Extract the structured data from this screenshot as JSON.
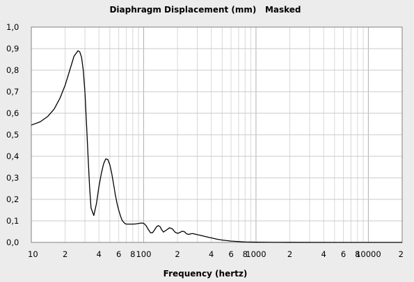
{
  "chart_data": {
    "type": "line",
    "title": "Diaphragm Displacement (mm)   Masked",
    "xlabel": "Frequency (hertz)",
    "ylabel": "",
    "x_scale": "log",
    "xlim": [
      10,
      20000
    ],
    "ylim": [
      0,
      1.0
    ],
    "grid": true,
    "y_ticks": [
      "0,0",
      "0,1",
      "0,2",
      "0,3",
      "0,4",
      "0,5",
      "0,6",
      "0,7",
      "0,8",
      "0,9",
      "1,0"
    ],
    "x_ticks": [
      {
        "value": 10,
        "label": "10"
      },
      {
        "value": 20,
        "label": "2"
      },
      {
        "value": 40,
        "label": "4"
      },
      {
        "value": 60,
        "label": "6"
      },
      {
        "value": 80,
        "label": "8"
      },
      {
        "value": 100,
        "label": "100"
      },
      {
        "value": 200,
        "label": "2"
      },
      {
        "value": 400,
        "label": "4"
      },
      {
        "value": 600,
        "label": "6"
      },
      {
        "value": 800,
        "label": "8"
      },
      {
        "value": 1000,
        "label": "1000"
      },
      {
        "value": 2000,
        "label": "2"
      },
      {
        "value": 4000,
        "label": "4"
      },
      {
        "value": 6000,
        "label": "6"
      },
      {
        "value": 8000,
        "label": "8"
      },
      {
        "value": 10000,
        "label": "10000"
      },
      {
        "value": 20000,
        "label": "2"
      }
    ],
    "series": [
      {
        "color": "#000000",
        "x": [
          10,
          12,
          14,
          16,
          18,
          20,
          22,
          24,
          26,
          27,
          28,
          29,
          30,
          31,
          32,
          33,
          34,
          36,
          38,
          40,
          42,
          44,
          46,
          48,
          50,
          52,
          54,
          56,
          58,
          60,
          62,
          64,
          66,
          68,
          70,
          75,
          80,
          85,
          90,
          95,
          100,
          105,
          110,
          115,
          120,
          125,
          130,
          135,
          140,
          145,
          150,
          160,
          170,
          180,
          190,
          200,
          210,
          220,
          230,
          240,
          250,
          260,
          270,
          280,
          300,
          320,
          350,
          400,
          450,
          500,
          600,
          700,
          800,
          1000,
          1500,
          2000,
          5000,
          10000,
          20000
        ],
        "y": [
          0.545,
          0.56,
          0.585,
          0.62,
          0.67,
          0.73,
          0.8,
          0.865,
          0.89,
          0.885,
          0.86,
          0.8,
          0.7,
          0.55,
          0.4,
          0.26,
          0.16,
          0.125,
          0.18,
          0.26,
          0.32,
          0.365,
          0.388,
          0.385,
          0.36,
          0.32,
          0.27,
          0.22,
          0.18,
          0.15,
          0.125,
          0.105,
          0.095,
          0.088,
          0.085,
          0.085,
          0.085,
          0.086,
          0.088,
          0.09,
          0.089,
          0.078,
          0.06,
          0.045,
          0.045,
          0.058,
          0.072,
          0.078,
          0.073,
          0.058,
          0.048,
          0.058,
          0.068,
          0.063,
          0.048,
          0.042,
          0.046,
          0.052,
          0.05,
          0.041,
          0.037,
          0.039,
          0.041,
          0.04,
          0.036,
          0.033,
          0.028,
          0.021,
          0.015,
          0.011,
          0.006,
          0.004,
          0.002,
          0.001,
          0.0005,
          0.0002,
          0.0,
          0.0,
          0.0
        ]
      }
    ]
  }
}
